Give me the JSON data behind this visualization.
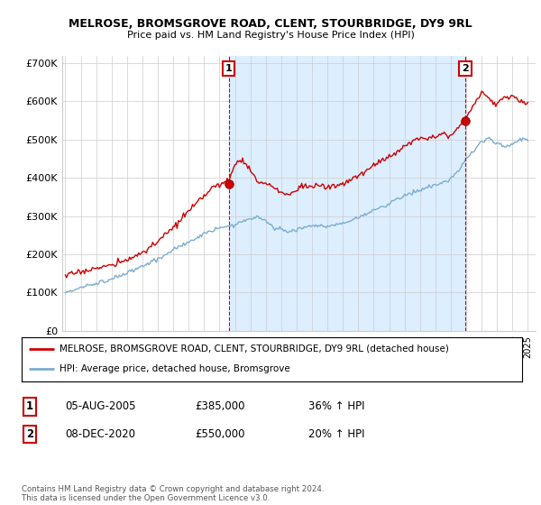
{
  "title": "MELROSE, BROMSGROVE ROAD, CLENT, STOURBRIDGE, DY9 9RL",
  "subtitle": "Price paid vs. HM Land Registry's House Price Index (HPI)",
  "legend_line1": "MELROSE, BROMSGROVE ROAD, CLENT, STOURBRIDGE, DY9 9RL (detached house)",
  "legend_line2": "HPI: Average price, detached house, Bromsgrove",
  "annotation1_label": "1",
  "annotation1_date": "05-AUG-2005",
  "annotation1_price": "£385,000",
  "annotation1_hpi": "36% ↑ HPI",
  "annotation2_label": "2",
  "annotation2_date": "08-DEC-2020",
  "annotation2_price": "£550,000",
  "annotation2_hpi": "20% ↑ HPI",
  "footer": "Contains HM Land Registry data © Crown copyright and database right 2024.\nThis data is licensed under the Open Government Licence v3.0.",
  "red_color": "#cc0000",
  "blue_color": "#7aadcf",
  "shade_color": "#ddeeff",
  "background_color": "#ffffff",
  "grid_color": "#cccccc",
  "ylim": [
    0,
    720000
  ],
  "yticks": [
    0,
    100000,
    200000,
    300000,
    400000,
    500000,
    600000,
    700000
  ],
  "ytick_labels": [
    "£0",
    "£100K",
    "£200K",
    "£300K",
    "£400K",
    "£500K",
    "£600K",
    "£700K"
  ],
  "sale1_x": 2005.59,
  "sale1_y": 385000,
  "sale2_x": 2020.93,
  "sale2_y": 550000,
  "xlim_left": 1994.8,
  "xlim_right": 2025.5
}
